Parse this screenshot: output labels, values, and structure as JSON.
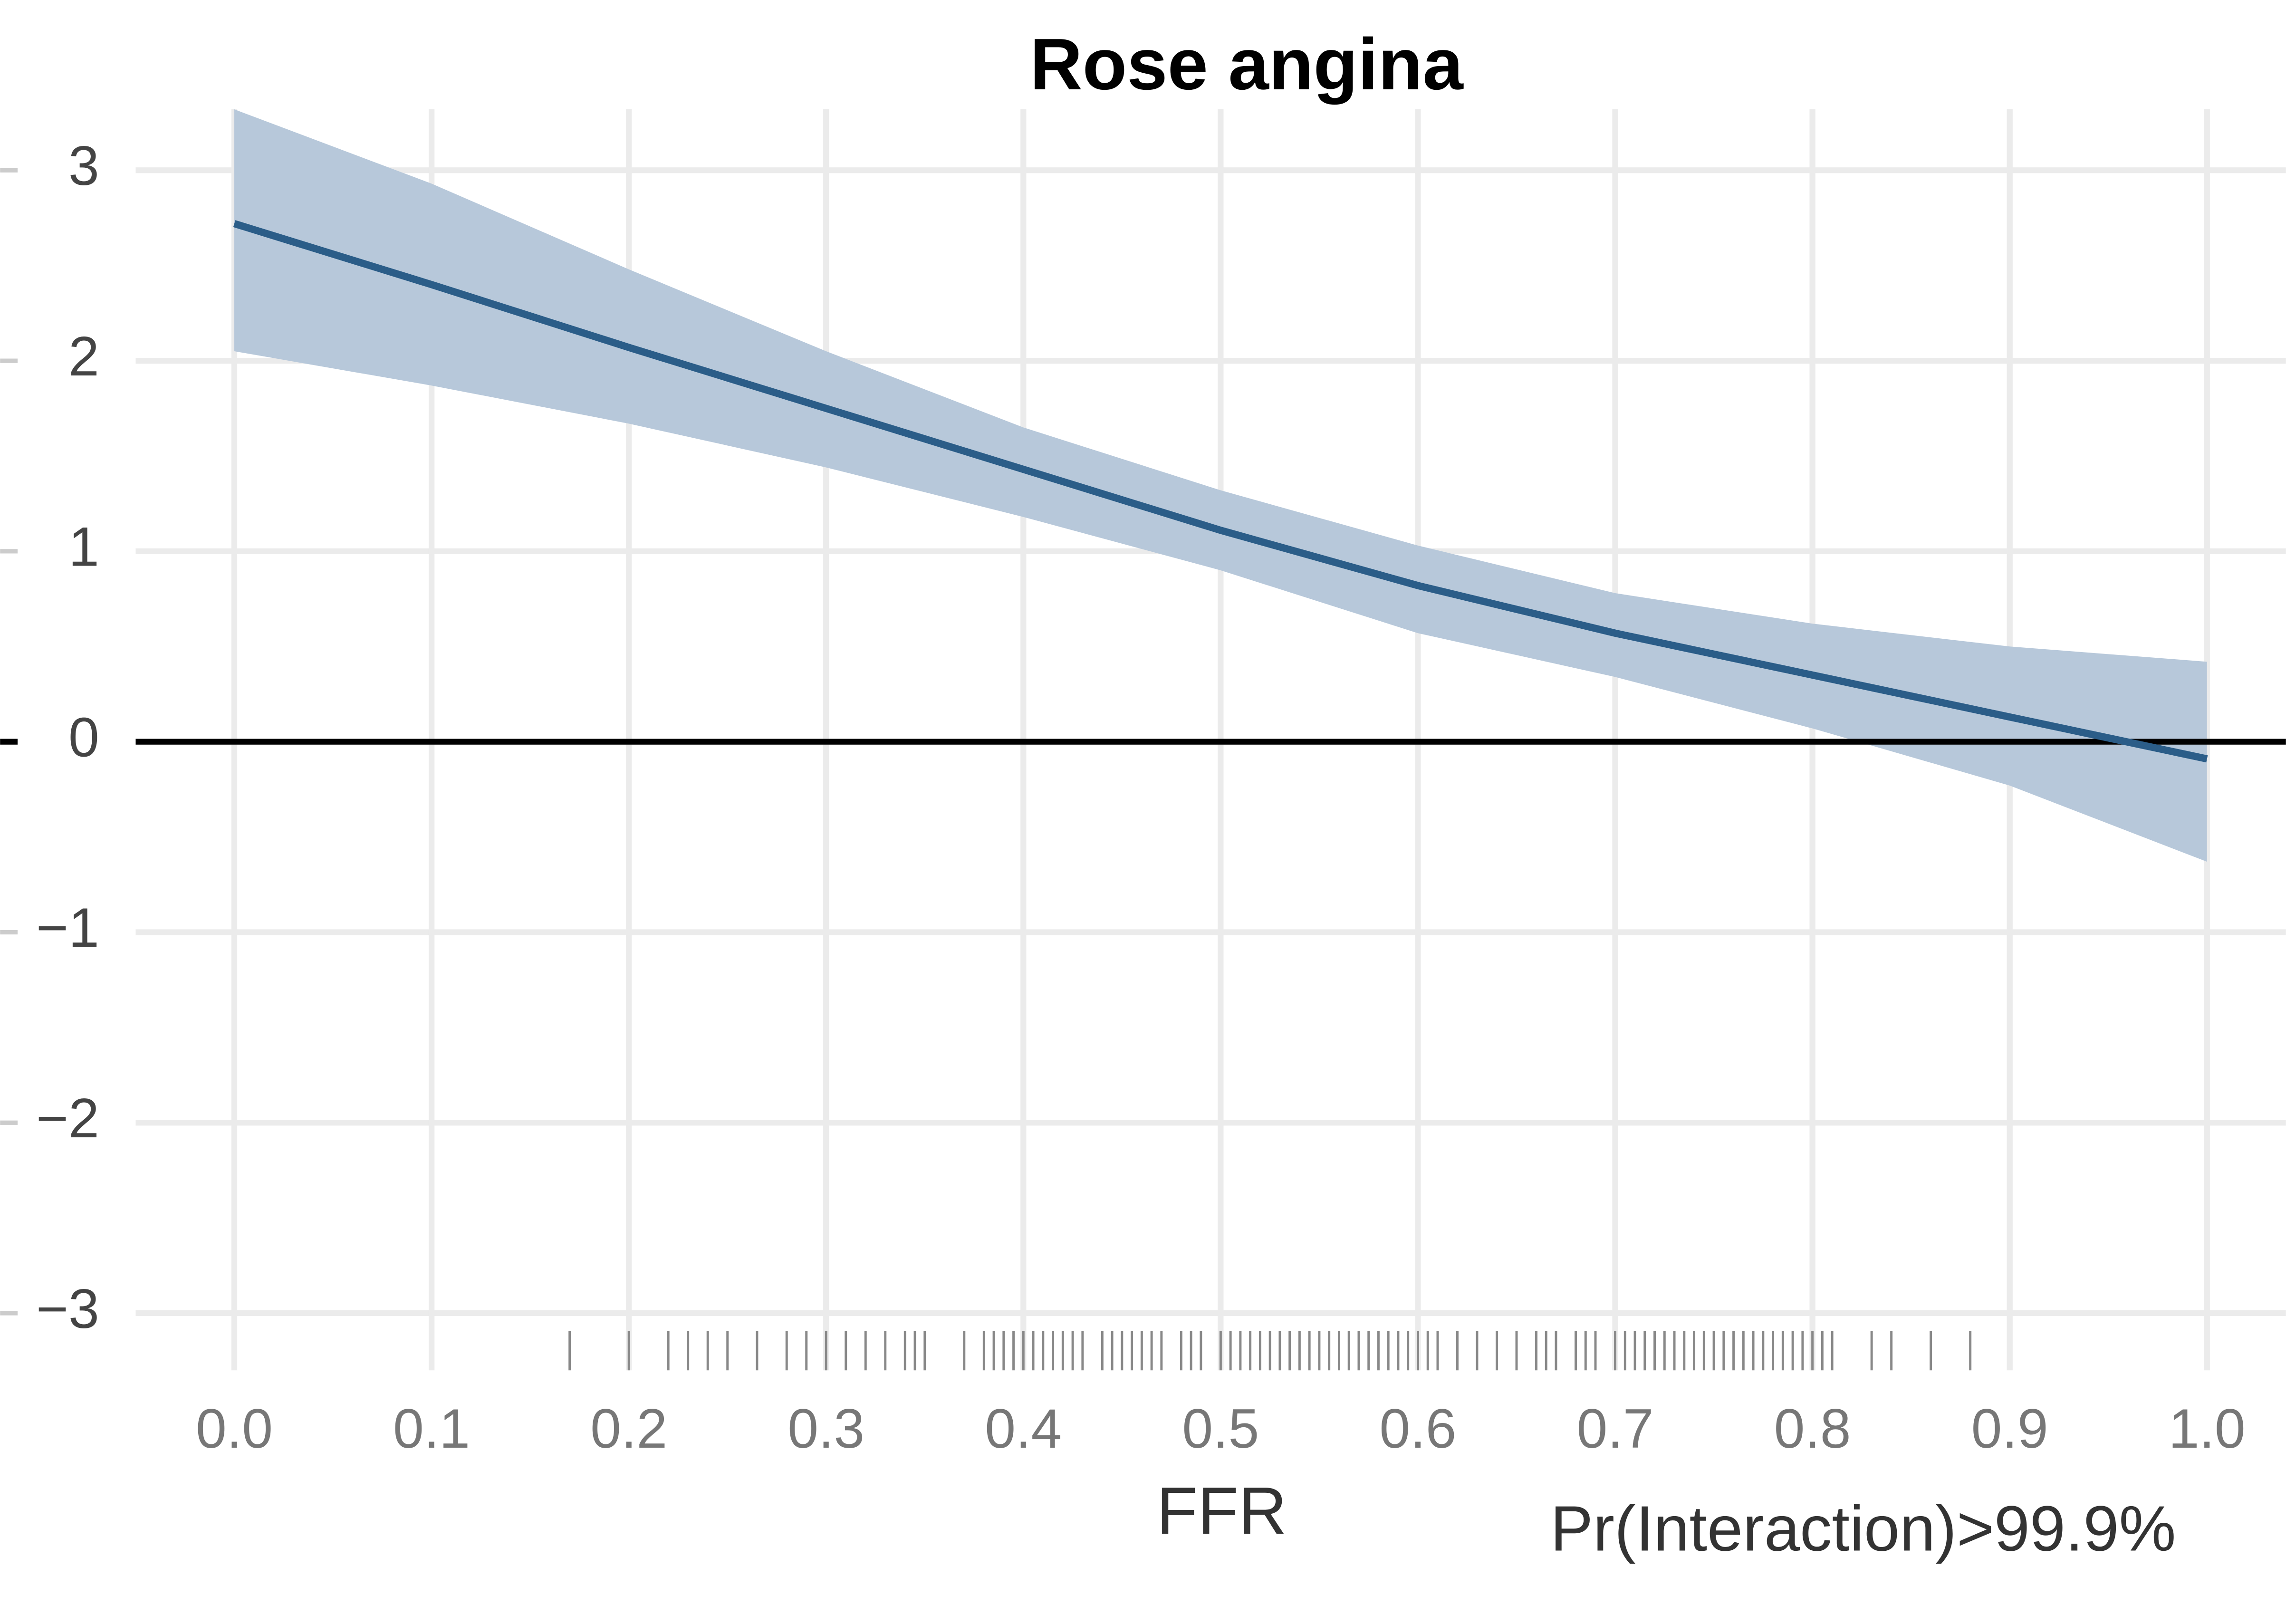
{
  "chart_data": {
    "type": "line",
    "title": "Rose angina",
    "x_label": "FFR",
    "annotation": "Pr(Interaction)>99.9%",
    "x": [
      0,
      0.1,
      0.2,
      0.3,
      0.4,
      0.5,
      0.6,
      0.7,
      0.8,
      0.9,
      1.0
    ],
    "series": [
      {
        "color": "#2b5d88",
        "band_color": "#b7c8da",
        "values": [
          2.72,
          2.4,
          2.07,
          1.75,
          1.43,
          1.11,
          0.82,
          0.57,
          0.35,
          0.13,
          -0.09
        ],
        "upper": [
          3.32,
          2.93,
          2.48,
          2.05,
          1.65,
          1.32,
          1.03,
          0.78,
          0.62,
          0.5,
          0.42
        ],
        "lower": [
          2.05,
          1.87,
          1.67,
          1.44,
          1.18,
          0.9,
          0.57,
          0.34,
          0.07,
          -0.23,
          -0.63
        ]
      }
    ],
    "rug": [
      0.17,
      0.2,
      0.22,
      0.23,
      0.24,
      0.25,
      0.265,
      0.28,
      0.29,
      0.3,
      0.31,
      0.32,
      0.33,
      0.34,
      0.345,
      0.35,
      0.37,
      0.38,
      0.385,
      0.39,
      0.395,
      0.4,
      0.405,
      0.41,
      0.415,
      0.42,
      0.425,
      0.43,
      0.44,
      0.445,
      0.45,
      0.455,
      0.46,
      0.465,
      0.47,
      0.48,
      0.485,
      0.49,
      0.5,
      0.505,
      0.51,
      0.515,
      0.52,
      0.525,
      0.53,
      0.535,
      0.54,
      0.545,
      0.55,
      0.555,
      0.56,
      0.565,
      0.57,
      0.575,
      0.58,
      0.585,
      0.59,
      0.595,
      0.6,
      0.605,
      0.61,
      0.62,
      0.63,
      0.64,
      0.65,
      0.66,
      0.665,
      0.67,
      0.68,
      0.685,
      0.69,
      0.7,
      0.705,
      0.71,
      0.715,
      0.72,
      0.725,
      0.73,
      0.735,
      0.74,
      0.745,
      0.75,
      0.755,
      0.76,
      0.765,
      0.77,
      0.775,
      0.78,
      0.785,
      0.79,
      0.795,
      0.8,
      0.805,
      0.81,
      0.83,
      0.84,
      0.86,
      0.88
    ],
    "xlim": [
      -0.05,
      1.04
    ],
    "ylim": [
      -3.3,
      3.32
    ],
    "xticks": [
      {
        "value": 0,
        "label": "0.0"
      },
      0.1,
      0.2,
      0.3,
      0.4,
      0.5,
      0.6,
      0.7,
      0.8,
      0.9,
      {
        "value": 1,
        "label": "1.0"
      }
    ],
    "yticks": [
      {
        "value": -3,
        "label": "−3"
      },
      {
        "value": -2,
        "label": "−2"
      },
      {
        "value": -1,
        "label": "−1"
      },
      0,
      1,
      2,
      3
    ],
    "grid": true,
    "reference_line": 0
  }
}
